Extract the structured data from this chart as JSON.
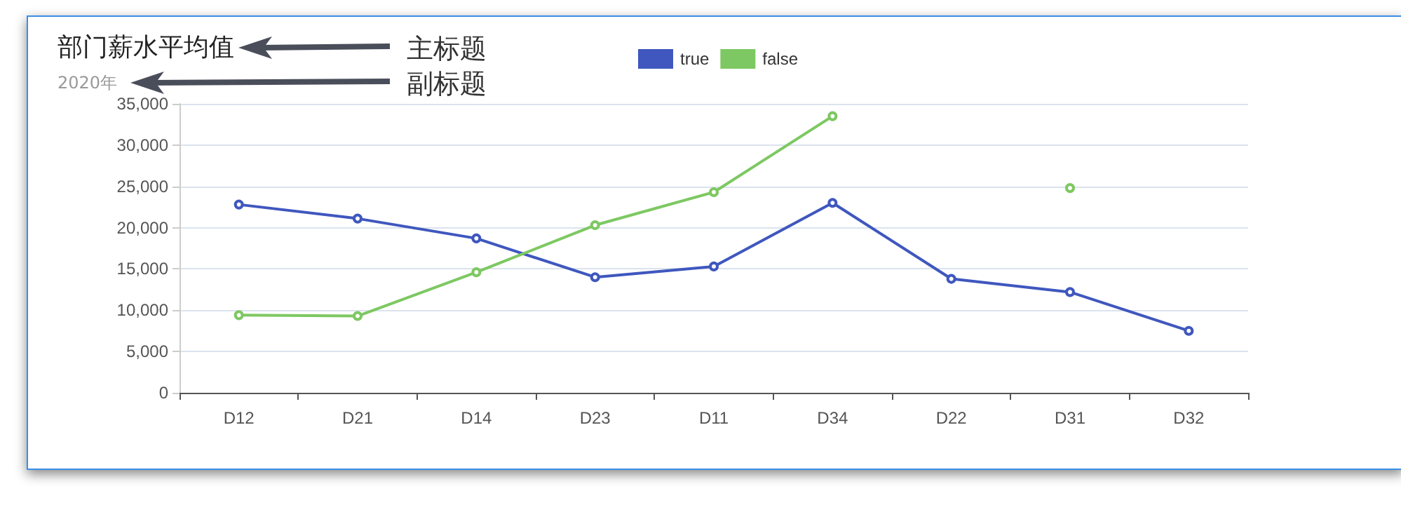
{
  "chart_data": {
    "type": "line",
    "title": "部门薪水平均值",
    "subtitle": "2020年",
    "annotations": [
      "主标题",
      "副标题"
    ],
    "categories": [
      "D12",
      "D21",
      "D14",
      "D23",
      "D11",
      "D34",
      "D22",
      "D31",
      "D32"
    ],
    "series": [
      {
        "name": "true",
        "color": "#3f57be",
        "values": [
          22800,
          21100,
          18700,
          14000,
          15300,
          23000,
          13800,
          12200,
          7500
        ]
      },
      {
        "name": "false",
        "color": "#7dc862",
        "values": [
          9400,
          9300,
          14600,
          20300,
          24300,
          33500,
          null,
          24800,
          null
        ]
      }
    ],
    "ylim": [
      0,
      35000
    ],
    "yticks": [
      0,
      {
        "value": 5000,
        "label": "5,000"
      },
      {
        "value": 10000,
        "label": "10,000"
      },
      {
        "value": 15000,
        "label": "15,000"
      },
      {
        "value": 20000,
        "label": "20,000"
      },
      {
        "value": 25000,
        "label": "25,000"
      },
      {
        "value": 30000,
        "label": "30,000"
      },
      {
        "value": 35000,
        "label": "35,000"
      }
    ],
    "grid": "y",
    "legend": "top",
    "marker": "circle",
    "line_style": "solid"
  }
}
